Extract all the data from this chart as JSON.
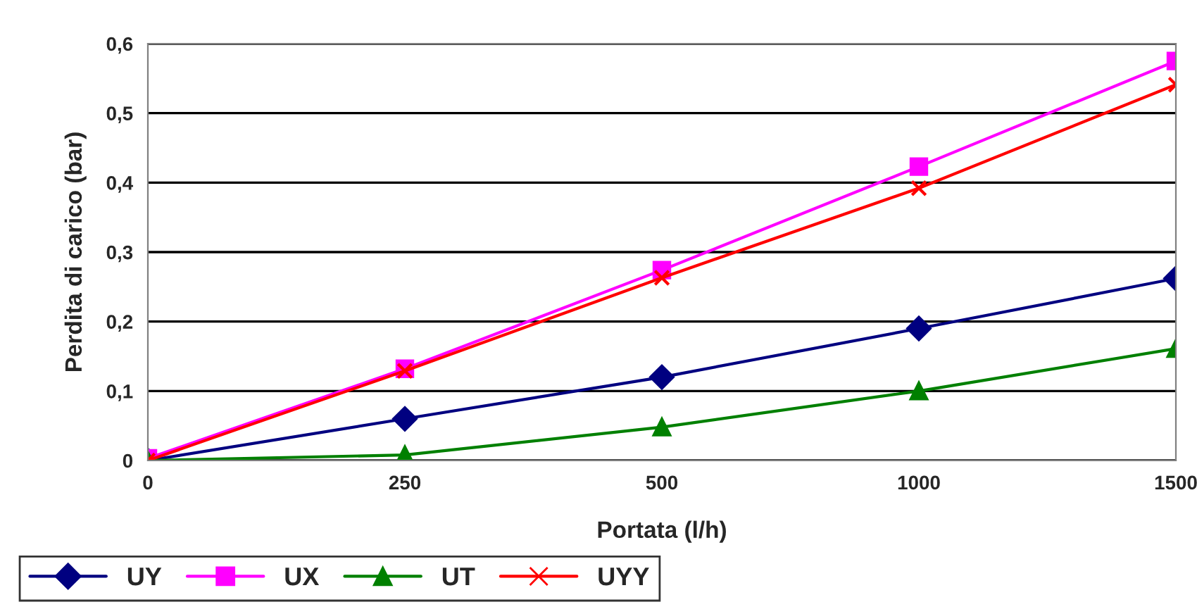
{
  "chart_data": {
    "type": "line",
    "xlabel": "Portata (l/h)",
    "ylabel": "Perdita di carico (bar)",
    "categories": [
      "0",
      "250",
      "500",
      "1000",
      "1500"
    ],
    "series": [
      {
        "name": "UY",
        "color": "#000080",
        "marker": "diamond",
        "values": [
          0,
          0.06,
          0.12,
          0.19,
          0.262
        ]
      },
      {
        "name": "UX",
        "color": "#ff00ff",
        "marker": "square",
        "values": [
          0.003,
          0.132,
          0.274,
          0.423,
          0.575
        ]
      },
      {
        "name": "UT",
        "color": "#008000",
        "marker": "triangle",
        "values": [
          0,
          0.008,
          0.048,
          0.1,
          0.161
        ]
      },
      {
        "name": "UYY",
        "color": "#ff0000",
        "marker": "cross",
        "values": [
          0,
          0.129,
          0.263,
          0.392,
          0.541
        ]
      }
    ],
    "ylim": [
      0,
      0.6
    ],
    "yticks": [
      {
        "value": 0,
        "label": "0"
      },
      {
        "value": 0.1,
        "label": "0,1"
      },
      {
        "value": 0.2,
        "label": "0,2"
      },
      {
        "value": 0.3,
        "label": "0,3"
      },
      {
        "value": 0.4,
        "label": "0,4"
      },
      {
        "value": 0.5,
        "label": "0,5"
      },
      {
        "value": 0.6,
        "label": "0,6"
      }
    ],
    "grid": "y",
    "legend": "bottom left",
    "line_style": "solid"
  }
}
